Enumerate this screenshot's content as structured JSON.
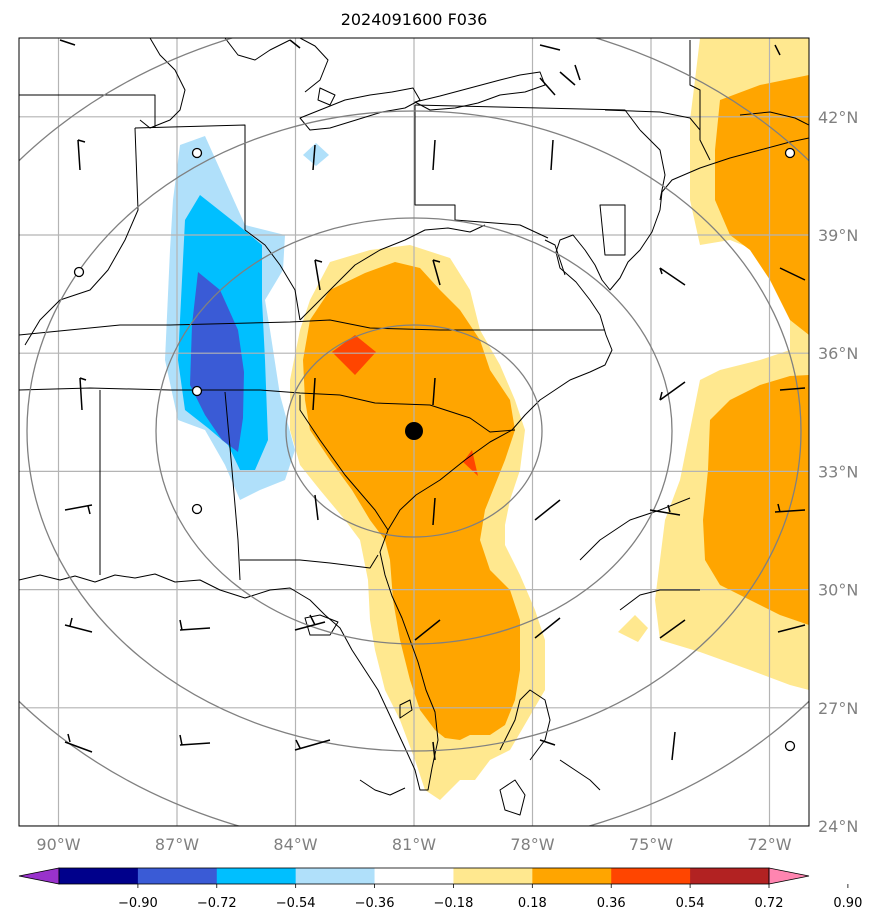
{
  "title": "2024091600 F036",
  "map": {
    "lon_range": [
      -91.0,
      -71.0
    ],
    "lat_range": [
      24.0,
      44.0
    ],
    "lon_ticks": [
      -90,
      -87,
      -84,
      -81,
      -78,
      -75,
      -72
    ],
    "lat_ticks": [
      24,
      27,
      30,
      33,
      36,
      39,
      42
    ],
    "lon_tick_labels": [
      "90°W",
      "87°W",
      "84°W",
      "81°W",
      "78°W",
      "75°W",
      "72°W"
    ],
    "lat_tick_labels": [
      "24°N",
      "27°N",
      "30°N",
      "33°N",
      "36°N",
      "39°N",
      "42°N"
    ],
    "gridlines": true,
    "center_marker": {
      "lon": -80.4,
      "lat": 33.9
    },
    "range_rings": 4
  },
  "colorbar": {
    "tick_labels": [
      "−0.90",
      "−0.72",
      "−0.54",
      "−0.36",
      "−0.18",
      "0.18",
      "0.36",
      "0.54",
      "0.72",
      "0.90"
    ],
    "colors": [
      "#9932cc",
      "#00008b",
      "#3a5bd6",
      "#00bfff",
      "#b0e0fa",
      "#ffffff",
      "#ffe88f",
      "#ffa500",
      "#ff4500",
      "#b22222",
      "#ff85b0"
    ],
    "extend": "both"
  }
}
